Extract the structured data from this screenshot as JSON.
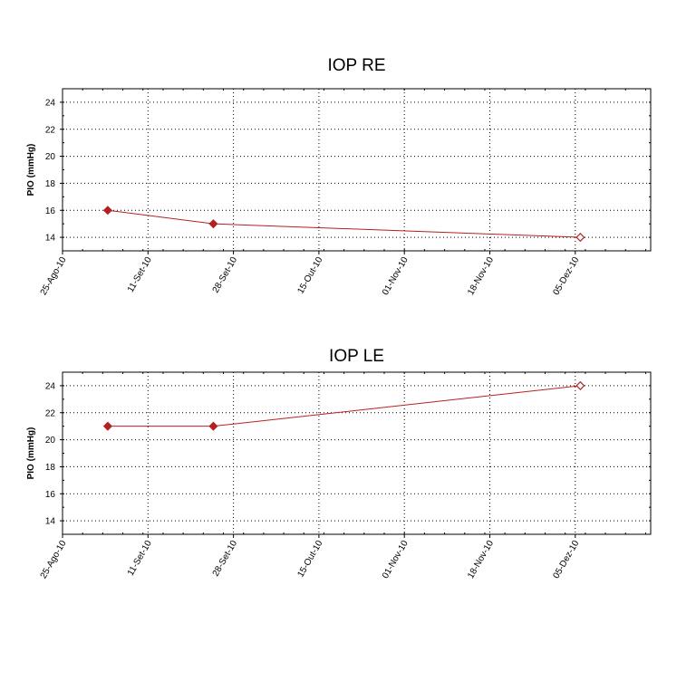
{
  "chart_data": [
    {
      "type": "line",
      "title": "IOP RE",
      "ylabel": "PIO (mmHg)",
      "xlabel": "",
      "x_ticks": [
        "25-Ago-10",
        "11-Set-10",
        "28-Set-10",
        "15-Out-10",
        "01-Nov-10",
        "18-Nov-10",
        "05-Dez-10"
      ],
      "x_tick_dates": [
        "2010-08-25",
        "2010-09-11",
        "2010-09-28",
        "2010-10-15",
        "2010-11-01",
        "2010-11-18",
        "2010-12-05"
      ],
      "xlim": [
        "2010-08-25",
        "2010-12-20"
      ],
      "y_ticks": [
        14,
        16,
        18,
        20,
        22,
        24
      ],
      "ylim": [
        13,
        25
      ],
      "grid": true,
      "line_color": "#b22222",
      "series": [
        {
          "x": [
            "2010-09-03",
            "2010-09-24",
            "2010-12-06"
          ],
          "values": [
            16,
            15,
            14
          ],
          "markers": [
            "filled",
            "filled",
            "open"
          ]
        }
      ]
    },
    {
      "type": "line",
      "title": "IOP LE",
      "ylabel": "PIO (mmHg)",
      "xlabel": "",
      "x_ticks": [
        "25-Ago-10",
        "11-Set-10",
        "28-Set-10",
        "15-Out-10",
        "01-Nov-10",
        "18-Nov-10",
        "05-Dez-10"
      ],
      "x_tick_dates": [
        "2010-08-25",
        "2010-09-11",
        "2010-09-28",
        "2010-10-15",
        "2010-11-01",
        "2010-11-18",
        "2010-12-05"
      ],
      "xlim": [
        "2010-08-25",
        "2010-12-20"
      ],
      "y_ticks": [
        14,
        16,
        18,
        20,
        22,
        24
      ],
      "ylim": [
        13,
        25
      ],
      "grid": true,
      "line_color": "#b22222",
      "series": [
        {
          "x": [
            "2010-09-03",
            "2010-09-24",
            "2010-12-06"
          ],
          "values": [
            21,
            21,
            24
          ],
          "markers": [
            "filled",
            "filled",
            "open"
          ]
        }
      ]
    }
  ]
}
